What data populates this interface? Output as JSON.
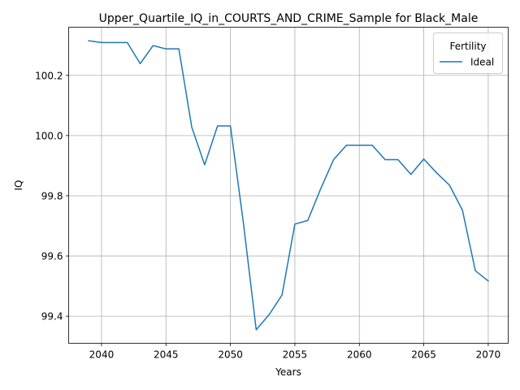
{
  "chart_data": {
    "type": "line",
    "title": "Upper_Quartile_IQ_in_COURTS_AND_CRIME_Sample for Black_Male",
    "xlabel": "Years",
    "ylabel": "IQ",
    "xlim": [
      2037.45,
      2071.55
    ],
    "ylim": [
      99.31,
      100.36
    ],
    "x_ticks": [
      2040,
      2045,
      2050,
      2055,
      2060,
      2065,
      2070
    ],
    "y_ticks": [
      99.4,
      99.6,
      99.8,
      100.0,
      100.2
    ],
    "x_tick_labels": [
      "2040",
      "2045",
      "2050",
      "2055",
      "2060",
      "2065",
      "2070"
    ],
    "y_tick_labels": [
      "99.4",
      "99.6",
      "99.8",
      "100.0",
      "100.2"
    ],
    "grid": true,
    "legend": {
      "title": "Fertility",
      "position": "top-right"
    },
    "series": [
      {
        "name": "Ideal",
        "color": "#1f77b4",
        "x": [
          2039,
          2040,
          2041,
          2042,
          2043,
          2044,
          2045,
          2046,
          2047,
          2048,
          2049,
          2050,
          2051,
          2052,
          2053,
          2054,
          2055,
          2056,
          2057,
          2058,
          2059,
          2060,
          2061,
          2062,
          2063,
          2064,
          2065,
          2066,
          2067,
          2068,
          2069,
          2070
        ],
        "y": [
          100.315,
          100.309,
          100.309,
          100.309,
          100.239,
          100.299,
          100.288,
          100.288,
          100.028,
          99.903,
          100.032,
          100.032,
          99.712,
          99.355,
          99.405,
          99.47,
          99.706,
          99.718,
          99.823,
          99.92,
          99.968,
          99.968,
          99.968,
          99.92,
          99.92,
          99.871,
          99.922,
          99.876,
          99.835,
          99.752,
          99.551,
          99.517
        ]
      }
    ]
  }
}
